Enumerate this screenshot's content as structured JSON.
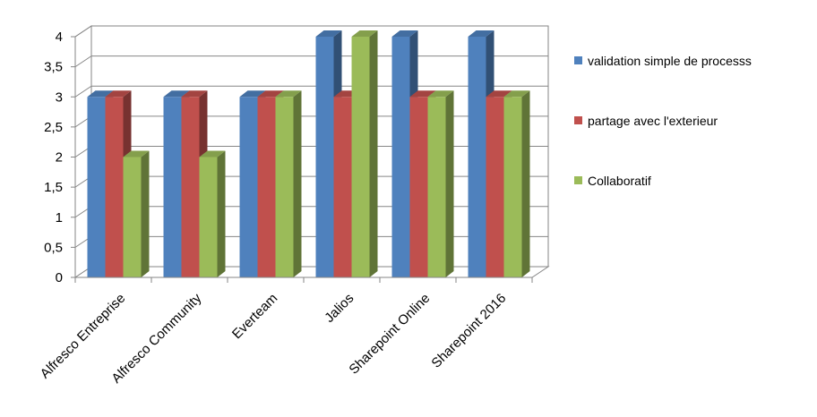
{
  "chart_data": {
    "type": "bar",
    "style": "3d-clustered-column",
    "categories": [
      "Alfresco Entreprise",
      "Alfresco Community",
      "Everteam",
      "Jalios",
      "Sharepoint Online",
      "Sharepoint 2016"
    ],
    "series": [
      {
        "name": "validation simple de processs",
        "values": [
          3,
          3,
          3,
          4,
          4,
          4
        ],
        "color": "#4F81BD"
      },
      {
        "name": "partage avec l'exterieur",
        "values": [
          3,
          3,
          3,
          3,
          3,
          3
        ],
        "color": "#C0504D"
      },
      {
        "name": "Collaboratif",
        "values": [
          2,
          2,
          3,
          4,
          3,
          3
        ],
        "color": "#9BBB59"
      }
    ],
    "y_ticks": [
      "0",
      "0,5",
      "1",
      "1,5",
      "2",
      "2,5",
      "3",
      "3,5",
      "4"
    ],
    "ylim": [
      0,
      4
    ],
    "title": "",
    "xlabel": "",
    "ylabel": "",
    "grid": true,
    "legend_position": "right"
  }
}
